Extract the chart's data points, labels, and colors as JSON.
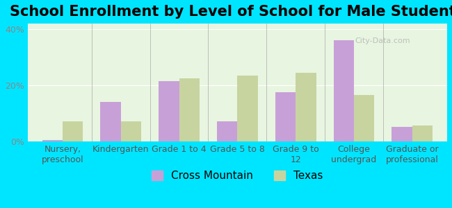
{
  "title": "School Enrollment by Level of School for Male Students",
  "categories": [
    "Nursery,\npreschool",
    "Kindergarten",
    "Grade 1 to 4",
    "Grade 5 to 8",
    "Grade 9 to\n12",
    "College\nundergrad",
    "Graduate or\nprofessional"
  ],
  "cross_mountain": [
    0.5,
    14.0,
    21.5,
    7.0,
    17.5,
    36.0,
    5.0
  ],
  "texas": [
    7.0,
    7.0,
    22.5,
    23.5,
    24.5,
    16.5,
    5.5
  ],
  "cross_mountain_color": "#c8a0d8",
  "texas_color": "#c8d4a0",
  "background_outer": "#00e5ff",
  "background_inner": "#e8f5e0",
  "bar_width": 0.35,
  "ylim": [
    0,
    42
  ],
  "yticks": [
    0,
    20,
    40
  ],
  "ytick_labels": [
    "0%",
    "20%",
    "40%"
  ],
  "legend_labels": [
    "Cross Mountain",
    "Texas"
  ],
  "title_fontsize": 15,
  "tick_fontsize": 9,
  "legend_fontsize": 11
}
